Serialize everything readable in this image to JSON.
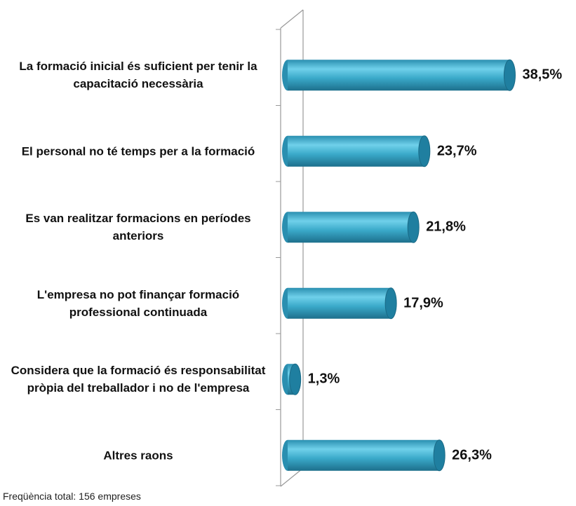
{
  "chart_data": {
    "type": "bar",
    "orientation": "horizontal",
    "categories": [
      "La formació inicial és suficient per tenir la capacitació necessària",
      "El personal no té temps per a la formació",
      "Es van realitzar formacions en períodes anteriors",
      "L'empresa no pot finançar formació professional continuada",
      "Considera que la formació és responsabilitat pròpia del treballador i no de l'empresa",
      "Altres raons"
    ],
    "values": [
      38.5,
      23.7,
      21.8,
      17.9,
      1.3,
      26.3
    ],
    "value_labels": [
      "38,5%",
      "23,7%",
      "21,8%",
      "17,9%",
      "1,3%",
      "26,3%"
    ],
    "color": "#3aa9c9",
    "xlim": [
      0,
      50
    ],
    "note": "Freqüència total: 156 empreses"
  }
}
